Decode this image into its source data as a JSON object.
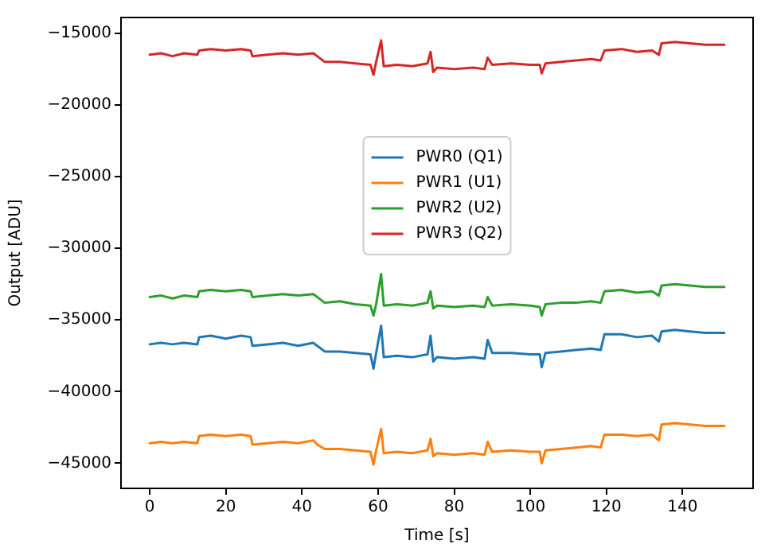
{
  "chart_data": {
    "type": "line",
    "xlabel": "Time [s]",
    "ylabel": "Output [ADU]",
    "x": [
      0,
      3,
      6,
      9,
      12.5,
      13,
      16,
      20,
      24,
      26.5,
      27,
      31,
      35,
      39,
      43,
      44,
      46,
      50,
      54,
      58,
      58.8,
      59.5,
      60.8,
      61.5,
      65,
      69,
      73,
      73.8,
      74.5,
      75.5,
      80,
      85,
      88,
      88.8,
      90,
      95,
      100,
      102.5,
      103,
      104,
      108,
      112,
      116,
      118.5,
      119.5,
      124,
      128,
      132,
      133.8,
      134.5,
      138,
      142,
      146,
      151
    ],
    "series": [
      {
        "name": "PWR0 (Q1)",
        "color": "#1f77b4",
        "values": [
          -36700,
          -36600,
          -36700,
          -36600,
          -36700,
          -36200,
          -36100,
          -36300,
          -36100,
          -36200,
          -36800,
          -36700,
          -36600,
          -36800,
          -36600,
          -36800,
          -37200,
          -37200,
          -37300,
          -37400,
          -38400,
          -37300,
          -35400,
          -37600,
          -37500,
          -37600,
          -37400,
          -36100,
          -37900,
          -37600,
          -37700,
          -37600,
          -37700,
          -36400,
          -37300,
          -37300,
          -37400,
          -37400,
          -38300,
          -37300,
          -37200,
          -37100,
          -37000,
          -37100,
          -36000,
          -36000,
          -36200,
          -36100,
          -36500,
          -35800,
          -35700,
          -35800,
          -35900,
          -35900
        ]
      },
      {
        "name": "PWR1 (U1)",
        "color": "#ff7f0e",
        "values": [
          -43600,
          -43500,
          -43600,
          -43500,
          -43600,
          -43100,
          -43000,
          -43100,
          -43000,
          -43100,
          -43700,
          -43600,
          -43500,
          -43600,
          -43400,
          -43700,
          -44000,
          -44000,
          -44100,
          -44200,
          -45100,
          -44100,
          -42600,
          -44300,
          -44200,
          -44300,
          -44100,
          -43300,
          -44500,
          -44300,
          -44400,
          -44300,
          -44400,
          -43500,
          -44200,
          -44100,
          -44200,
          -44200,
          -45000,
          -44100,
          -44000,
          -43900,
          -43800,
          -43900,
          -43000,
          -43000,
          -43100,
          -43000,
          -43400,
          -42300,
          -42200,
          -42300,
          -42400,
          -42400
        ]
      },
      {
        "name": "PWR2 (U2)",
        "color": "#2ca02c",
        "values": [
          -33400,
          -33300,
          -33500,
          -33300,
          -33400,
          -33000,
          -32900,
          -33000,
          -32900,
          -33000,
          -33400,
          -33300,
          -33200,
          -33300,
          -33200,
          -33400,
          -33800,
          -33700,
          -33900,
          -34000,
          -34700,
          -33900,
          -31800,
          -34000,
          -33900,
          -34000,
          -33800,
          -33000,
          -34200,
          -34000,
          -34100,
          -34000,
          -34100,
          -33400,
          -34000,
          -33900,
          -34000,
          -34100,
          -34700,
          -33900,
          -33800,
          -33800,
          -33700,
          -33800,
          -33000,
          -32900,
          -33100,
          -33000,
          -33300,
          -32600,
          -32500,
          -32600,
          -32700,
          -32700
        ]
      },
      {
        "name": "PWR3 (Q2)",
        "color": "#d62728",
        "values": [
          -16500,
          -16400,
          -16600,
          -16400,
          -16500,
          -16200,
          -16100,
          -16200,
          -16100,
          -16200,
          -16600,
          -16500,
          -16400,
          -16500,
          -16400,
          -16600,
          -17000,
          -17000,
          -17100,
          -17200,
          -17900,
          -17000,
          -15500,
          -17300,
          -17200,
          -17300,
          -17100,
          -16300,
          -17700,
          -17400,
          -17500,
          -17400,
          -17500,
          -16700,
          -17200,
          -17100,
          -17200,
          -17200,
          -17800,
          -17100,
          -17000,
          -16900,
          -16800,
          -16900,
          -16200,
          -16100,
          -16300,
          -16200,
          -16500,
          -15700,
          -15600,
          -15700,
          -15800,
          -15800
        ]
      }
    ],
    "xlim": [
      -7.55,
      158.55
    ],
    "xticks": [
      0,
      20,
      40,
      60,
      80,
      100,
      120,
      140
    ],
    "ylim": [
      -46750,
      -13900
    ],
    "yticks": [
      {
        "value": -15000,
        "label": "−15000"
      },
      {
        "value": -20000,
        "label": "−20000"
      },
      {
        "value": -25000,
        "label": "−25000"
      },
      {
        "value": -30000,
        "label": "−30000"
      },
      {
        "value": -35000,
        "label": "−35000"
      },
      {
        "value": -40000,
        "label": "−40000"
      },
      {
        "value": -45000,
        "label": "−45000"
      }
    ],
    "grid": false,
    "legend": "center",
    "marker": "none",
    "line_style": "solid"
  }
}
